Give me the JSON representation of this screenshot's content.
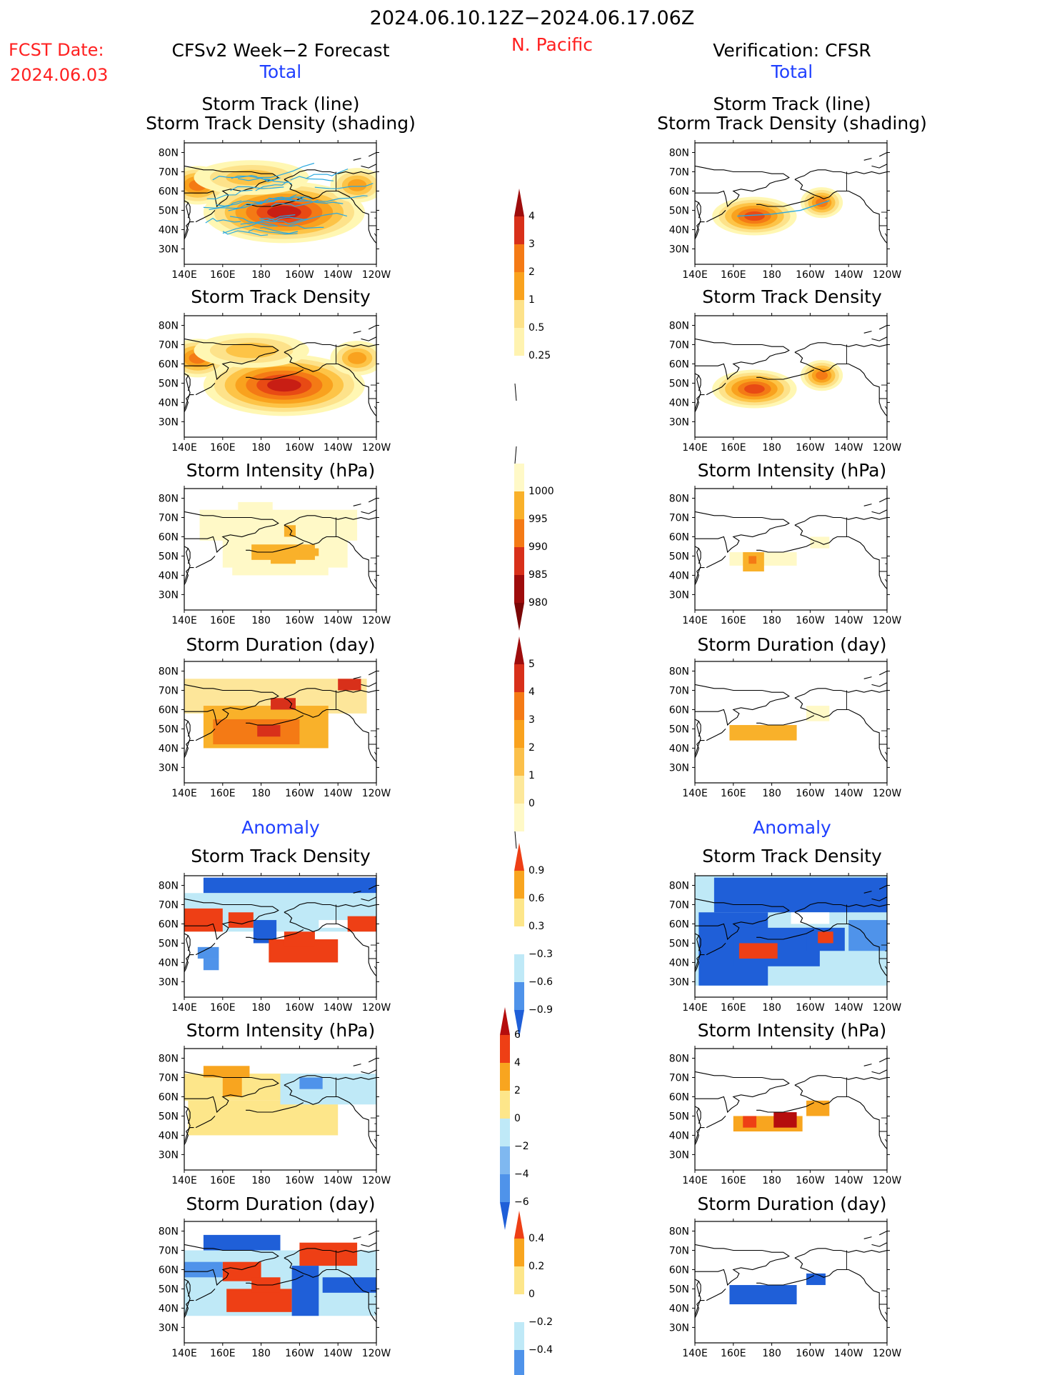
{
  "header": {
    "period": "2024.06.10.12Z−2024.06.17.06Z",
    "fcst_date_label": "FCST Date:",
    "fcst_date_value": "2024.06.03",
    "region": "N. Pacific",
    "left_title": "CFSv2 Week−2 Forecast",
    "right_title": "Verification: CFSR",
    "total_label": "Total",
    "anomaly_label": "Anomaly"
  },
  "axes": {
    "lat_ticks": [
      "80N",
      "70N",
      "60N",
      "50N",
      "40N",
      "30N"
    ],
    "lon_ticks": [
      "140E",
      "160E",
      "180",
      "160W",
      "140W",
      "120W"
    ]
  },
  "panels": {
    "track_title_1": "Storm Track (line)",
    "track_title_2": "Storm Track Density (shading)",
    "density": "Storm Track Density",
    "intensity": "Storm Intensity (hPa)",
    "duration": "Storm Duration (day)"
  },
  "colorbars": {
    "density_total": [
      "4",
      "3",
      "2",
      "1",
      "0.5",
      "0.25"
    ],
    "intensity_total": [
      "1000",
      "995",
      "990",
      "985",
      "980"
    ],
    "duration_total": [
      "5",
      "4",
      "3",
      "2",
      "1",
      "0"
    ],
    "density_anom": [
      "0.9",
      "0.6",
      "0.3",
      "−0.3",
      "−0.6",
      "−0.9"
    ],
    "intensity_anom": [
      "6",
      "4",
      "2",
      "0",
      "−2",
      "−4",
      "−6"
    ],
    "duration_anom": [
      "0.4",
      "0.2",
      "0",
      "−0.2",
      "−0.4"
    ]
  },
  "colors": {
    "title_red": "#ff2020",
    "label_blue": "#1f3fff",
    "track_lines": "#2aa8e0"
  }
}
